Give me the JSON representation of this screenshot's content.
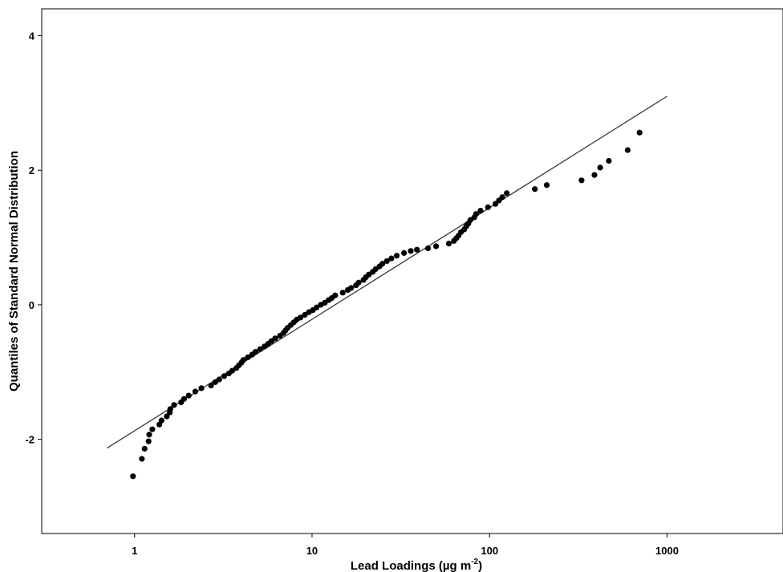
{
  "chart_data": {
    "type": "scatter",
    "title": "",
    "xlabel_main": "Lead Loadings (µg m",
    "xlabel_sup": "-2",
    "xlabel_tail": ")",
    "ylabel": "Quantiles of Standard Normal Distribution",
    "x_scale": "log",
    "xlim": [
      0.3,
      4500
    ],
    "ylim": [
      -3.4,
      4.4
    ],
    "x_ticks": [
      {
        "value": 1,
        "label": "1"
      },
      {
        "value": 10,
        "label": "10"
      },
      {
        "value": 100,
        "label": "100"
      },
      {
        "value": 1000,
        "label": "1000"
      }
    ],
    "y_ticks": [
      {
        "value": 4,
        "label": "4"
      },
      {
        "value": 2,
        "label": "2"
      },
      {
        "value": 0,
        "label": "0"
      },
      {
        "value": -2,
        "label": "-2"
      }
    ],
    "grid": false,
    "reference_line": {
      "x": [
        0.7,
        1000
      ],
      "y": [
        -2.13,
        3.1
      ]
    },
    "series": [
      {
        "marker_color": "#000000",
        "points": [
          [
            0.98,
            -2.55
          ],
          [
            1.1,
            -2.29
          ],
          [
            1.14,
            -2.14
          ],
          [
            1.2,
            -2.03
          ],
          [
            1.21,
            -1.93
          ],
          [
            1.26,
            -1.85
          ],
          [
            1.38,
            -1.78
          ],
          [
            1.42,
            -1.72
          ],
          [
            1.52,
            -1.66
          ],
          [
            1.58,
            -1.6
          ],
          [
            1.59,
            -1.55
          ],
          [
            1.67,
            -1.49
          ],
          [
            1.83,
            -1.45
          ],
          [
            1.9,
            -1.4
          ],
          [
            2.02,
            -1.35
          ],
          [
            2.2,
            -1.29
          ],
          [
            2.38,
            -1.24
          ],
          [
            2.7,
            -1.2
          ],
          [
            2.85,
            -1.15
          ],
          [
            3.0,
            -1.11
          ],
          [
            3.2,
            -1.06
          ],
          [
            3.4,
            -1.02
          ],
          [
            3.55,
            -0.98
          ],
          [
            3.75,
            -0.94
          ],
          [
            3.87,
            -0.9
          ],
          [
            4.0,
            -0.86
          ],
          [
            4.1,
            -0.82
          ],
          [
            4.35,
            -0.78
          ],
          [
            4.6,
            -0.74
          ],
          [
            4.8,
            -0.7
          ],
          [
            5.1,
            -0.66
          ],
          [
            5.4,
            -0.62
          ],
          [
            5.65,
            -0.58
          ],
          [
            5.9,
            -0.54
          ],
          [
            6.2,
            -0.5
          ],
          [
            6.6,
            -0.46
          ],
          [
            6.9,
            -0.42
          ],
          [
            7.1,
            -0.38
          ],
          [
            7.3,
            -0.34
          ],
          [
            7.6,
            -0.3
          ],
          [
            7.9,
            -0.26
          ],
          [
            8.2,
            -0.22
          ],
          [
            8.6,
            -0.19
          ],
          [
            9.1,
            -0.15
          ],
          [
            9.6,
            -0.11
          ],
          [
            10.1,
            -0.08
          ],
          [
            10.6,
            -0.04
          ],
          [
            11.2,
            0.0
          ],
          [
            11.8,
            0.03
          ],
          [
            12.4,
            0.07
          ],
          [
            12.9,
            0.1
          ],
          [
            13.5,
            0.14
          ],
          [
            14.9,
            0.18
          ],
          [
            15.9,
            0.22
          ],
          [
            16.6,
            0.25
          ],
          [
            17.7,
            0.29
          ],
          [
            18.3,
            0.33
          ],
          [
            19.5,
            0.37
          ],
          [
            20.1,
            0.41
          ],
          [
            20.9,
            0.45
          ],
          [
            22.0,
            0.49
          ],
          [
            22.8,
            0.53
          ],
          [
            24.0,
            0.57
          ],
          [
            24.9,
            0.61
          ],
          [
            26.4,
            0.65
          ],
          [
            28.0,
            0.69
          ],
          [
            30.0,
            0.73
          ],
          [
            33.0,
            0.77
          ],
          [
            36.0,
            0.8
          ],
          [
            39.0,
            0.82
          ],
          [
            45.0,
            0.84
          ],
          [
            50.0,
            0.87
          ],
          [
            59.0,
            0.91
          ],
          [
            63.0,
            0.95
          ],
          [
            65.0,
            0.99
          ],
          [
            67.0,
            1.03
          ],
          [
            69.0,
            1.08
          ],
          [
            72.0,
            1.12
          ],
          [
            74.0,
            1.17
          ],
          [
            76.0,
            1.21
          ],
          [
            78.0,
            1.26
          ],
          [
            82.0,
            1.3
          ],
          [
            84.0,
            1.35
          ],
          [
            89.0,
            1.4
          ],
          [
            98.0,
            1.45
          ],
          [
            108.0,
            1.5
          ],
          [
            113.0,
            1.55
          ],
          [
            118.0,
            1.6
          ],
          [
            125.0,
            1.66
          ],
          [
            180.0,
            1.72
          ],
          [
            210.0,
            1.78
          ],
          [
            330.0,
            1.85
          ],
          [
            390.0,
            1.93
          ],
          [
            420.0,
            2.04
          ],
          [
            470.0,
            2.14
          ],
          [
            600.0,
            2.3
          ],
          [
            700.0,
            2.56
          ]
        ]
      }
    ]
  }
}
